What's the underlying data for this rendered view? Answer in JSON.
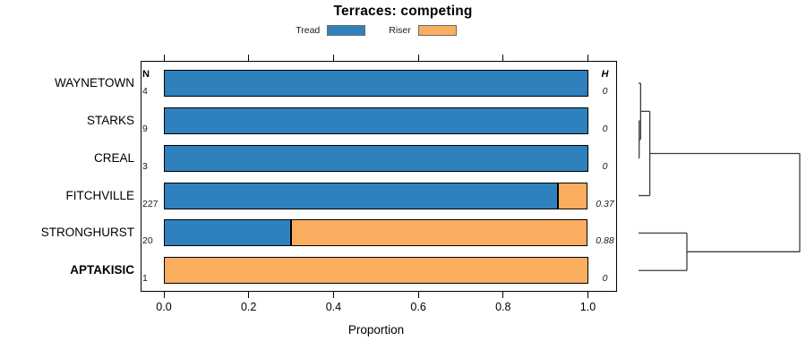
{
  "title": "Terraces: competing",
  "legend": {
    "items": [
      {
        "label": "Tread",
        "color": "#2e81bc"
      },
      {
        "label": "Riser",
        "color": "#fbad60"
      }
    ]
  },
  "axis": {
    "tick_labels": [
      "0.0",
      "0.2",
      "0.4",
      "0.6",
      "0.8",
      "1.0"
    ]
  },
  "chart_data": {
    "type": "bar",
    "orientation": "horizontal",
    "stacked": true,
    "grid": false,
    "legend_position": "top",
    "title": "Terraces: competing",
    "xlabel": "Proportion",
    "xlim": [
      0,
      1
    ],
    "xticks": [
      0,
      0.2,
      0.4,
      0.6,
      0.8,
      1
    ],
    "categories": [
      "WAYNETOWN",
      "STARKS",
      "CREAL",
      "FITCHVILLE",
      "STRONGHURST",
      "APTAKISIC"
    ],
    "bold_category": "APTAKISIC",
    "series": [
      {
        "name": "Tread",
        "color": "#2e81bc",
        "values": [
          1,
          1,
          1,
          0.93,
          0.3,
          0
        ]
      },
      {
        "name": "Riser",
        "color": "#fbad60",
        "values": [
          0,
          0,
          0,
          0.07,
          0.7,
          1
        ]
      }
    ],
    "row_counts": {
      "header": "N",
      "values": [
        4,
        9,
        3,
        227,
        20,
        1
      ]
    },
    "row_entropy": {
      "header": "H",
      "values": [
        "0",
        "0",
        "0",
        "0.37",
        "0.88",
        "0"
      ]
    },
    "dendrogram": {
      "orientation": "right",
      "merges": [
        {
          "a": "STARKS",
          "b": "CREAL",
          "height": 0.004
        },
        {
          "a": "WAYNETOWN",
          "b": "m0",
          "height": 0.013
        },
        {
          "a": "m1",
          "b": "FITCHVILLE",
          "height": 0.07
        },
        {
          "a": "STRONGHURST",
          "b": "APTAKISIC",
          "height": 0.3
        },
        {
          "a": "m2",
          "b": "m3",
          "height": 1.0
        }
      ]
    }
  }
}
